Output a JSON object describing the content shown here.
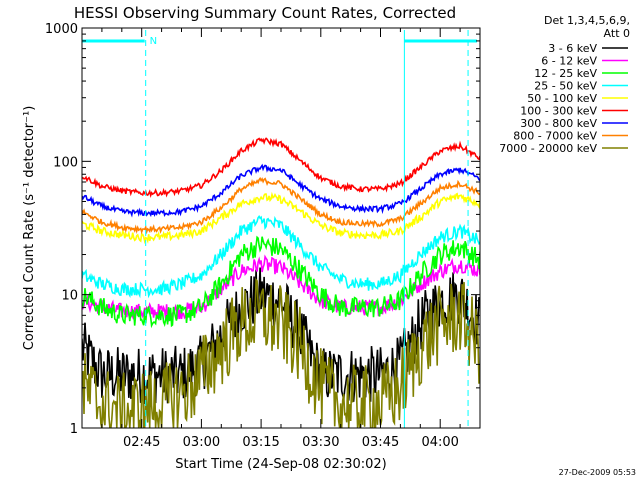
{
  "chart_data": {
    "type": "line",
    "title": "HESSI Observing Summary Count Rates, Corrected",
    "xlabel": "Start Time (24-Sep-08 02:30:02)",
    "ylabel": "Corrected Count Rate (s⁻¹ detector⁻¹)",
    "yscale": "log",
    "ylim": [
      1,
      1000
    ],
    "xlim_minutes_after_0230": [
      0,
      100
    ],
    "y_ticks": [
      {
        "value": 1,
        "label": "1"
      },
      {
        "value": 10,
        "label": "10"
      },
      {
        "value": 100,
        "label": "100"
      },
      {
        "value": 1000,
        "label": "1000"
      }
    ],
    "x_ticks": [
      {
        "minutes": 15,
        "label": "02:45"
      },
      {
        "minutes": 30,
        "label": "03:00"
      },
      {
        "minutes": 45,
        "label": "03:15"
      },
      {
        "minutes": 60,
        "label": "03:30"
      },
      {
        "minutes": 75,
        "label": "03:45"
      },
      {
        "minutes": 90,
        "label": "04:00"
      }
    ],
    "legend_header": [
      "Det 1,3,4,5,6,9,",
      "Att 0"
    ],
    "legend_position": "top-right outside plot",
    "time_minutes": [
      0,
      5,
      10,
      15,
      20,
      25,
      30,
      35,
      40,
      45,
      50,
      55,
      60,
      65,
      70,
      75,
      80,
      85,
      90,
      95,
      100
    ],
    "series": [
      {
        "name": "3 - 6 keV",
        "color": "#000000",
        "noise": 0.22,
        "values": [
          4,
          2.5,
          2.5,
          2.5,
          2.5,
          2.5,
          3,
          5,
          8,
          10,
          9,
          5,
          2.5,
          2.5,
          2.5,
          2.5,
          3,
          6,
          9,
          10,
          6
        ]
      },
      {
        "name": "6 - 12 keV",
        "color": "#ff00ff",
        "noise": 0.06,
        "values": [
          9,
          8,
          7.5,
          7.5,
          7.5,
          7.5,
          8,
          11,
          15,
          17,
          16,
          12,
          9,
          8,
          8,
          8,
          9,
          12,
          15,
          17,
          15
        ]
      },
      {
        "name": "12 - 25 keV",
        "color": "#00ff00",
        "noise": 0.08,
        "values": [
          10,
          8,
          7,
          7,
          7,
          7,
          8,
          12,
          20,
          24,
          22,
          15,
          10,
          8,
          8,
          8,
          9,
          14,
          20,
          23,
          18
        ]
      },
      {
        "name": "25 - 50 keV",
        "color": "#00ffff",
        "noise": 0.05,
        "values": [
          14,
          12,
          11,
          11,
          11,
          12,
          14,
          20,
          30,
          36,
          33,
          23,
          16,
          13,
          12,
          12,
          14,
          20,
          27,
          30,
          25
        ]
      },
      {
        "name": "50 - 100 keV",
        "color": "#ffff00",
        "noise": 0.03,
        "values": [
          34,
          30,
          28,
          27,
          27,
          28,
          30,
          38,
          48,
          54,
          52,
          42,
          33,
          29,
          28,
          28,
          30,
          38,
          50,
          55,
          48
        ]
      },
      {
        "name": "100 - 300 keV",
        "color": "#ff0000",
        "noise": 0.02,
        "values": [
          78,
          65,
          60,
          58,
          58,
          60,
          66,
          85,
          120,
          145,
          135,
          100,
          75,
          65,
          62,
          62,
          68,
          90,
          120,
          130,
          105
        ]
      },
      {
        "name": "300 - 800 keV",
        "color": "#0000ff",
        "noise": 0.02,
        "values": [
          55,
          46,
          42,
          41,
          41,
          42,
          46,
          58,
          78,
          90,
          86,
          66,
          52,
          46,
          44,
          44,
          48,
          62,
          80,
          87,
          74
        ]
      },
      {
        "name": "800 - 7000 keV",
        "color": "#ff8000",
        "noise": 0.02,
        "values": [
          42,
          35,
          32,
          31,
          31,
          32,
          35,
          45,
          62,
          72,
          68,
          52,
          40,
          35,
          34,
          34,
          37,
          48,
          63,
          68,
          58
        ]
      },
      {
        "name": "7000 - 20000 keV",
        "color": "#808000",
        "noise": 0.3,
        "values": [
          2,
          1.5,
          1.3,
          1.4,
          1.5,
          1.8,
          2.5,
          4,
          6,
          7,
          6,
          4,
          2,
          1.5,
          1.5,
          1.5,
          2,
          4,
          6,
          7,
          4
        ]
      }
    ],
    "annotations": {
      "marker_label": "N",
      "boundaries_minutes": [
        16,
        81,
        97
      ]
    },
    "grid": false,
    "timestamp": "27-Dec-2009 05:53"
  }
}
